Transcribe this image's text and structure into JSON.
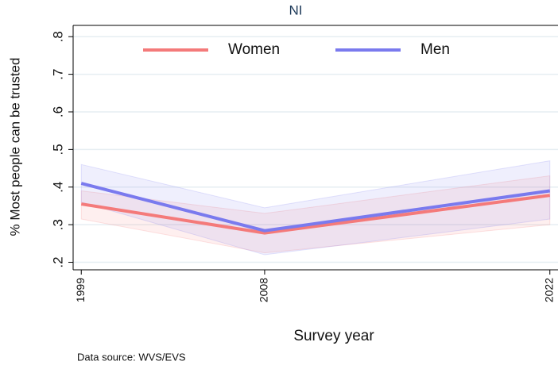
{
  "chart_data": {
    "type": "line",
    "title": "NI",
    "x_label": "Survey year",
    "y_label": "% Most people can be trusted",
    "note": "Data source: WVS/EVS",
    "x": [
      1999,
      2008,
      2022
    ],
    "xticks": [
      1999,
      2008,
      2022
    ],
    "xlim": [
      1998.6,
      2022.4
    ],
    "ylim": [
      0.18,
      0.83
    ],
    "yticks": [
      {
        "value": 0.2,
        "label": ".2"
      },
      {
        "value": 0.3,
        "label": ".3"
      },
      {
        "value": 0.4,
        "label": ".4"
      },
      {
        "value": 0.5,
        "label": ".5"
      },
      {
        "value": 0.6,
        "label": ".6"
      },
      {
        "value": 0.7,
        "label": ".7"
      },
      {
        "value": 0.8,
        "label": ".8"
      }
    ],
    "grid": true,
    "legend": "top",
    "series": [
      {
        "name": "Women",
        "color": "#f47a7a",
        "values": [
          0.355,
          0.278,
          0.378
        ],
        "lower": [
          0.315,
          0.225,
          0.3
        ],
        "upper": [
          0.39,
          0.33,
          0.43
        ]
      },
      {
        "name": "Men",
        "color": "#7a7aee",
        "values": [
          0.41,
          0.284,
          0.39
        ],
        "lower": [
          0.36,
          0.22,
          0.315
        ],
        "upper": [
          0.46,
          0.345,
          0.47
        ]
      }
    ]
  }
}
